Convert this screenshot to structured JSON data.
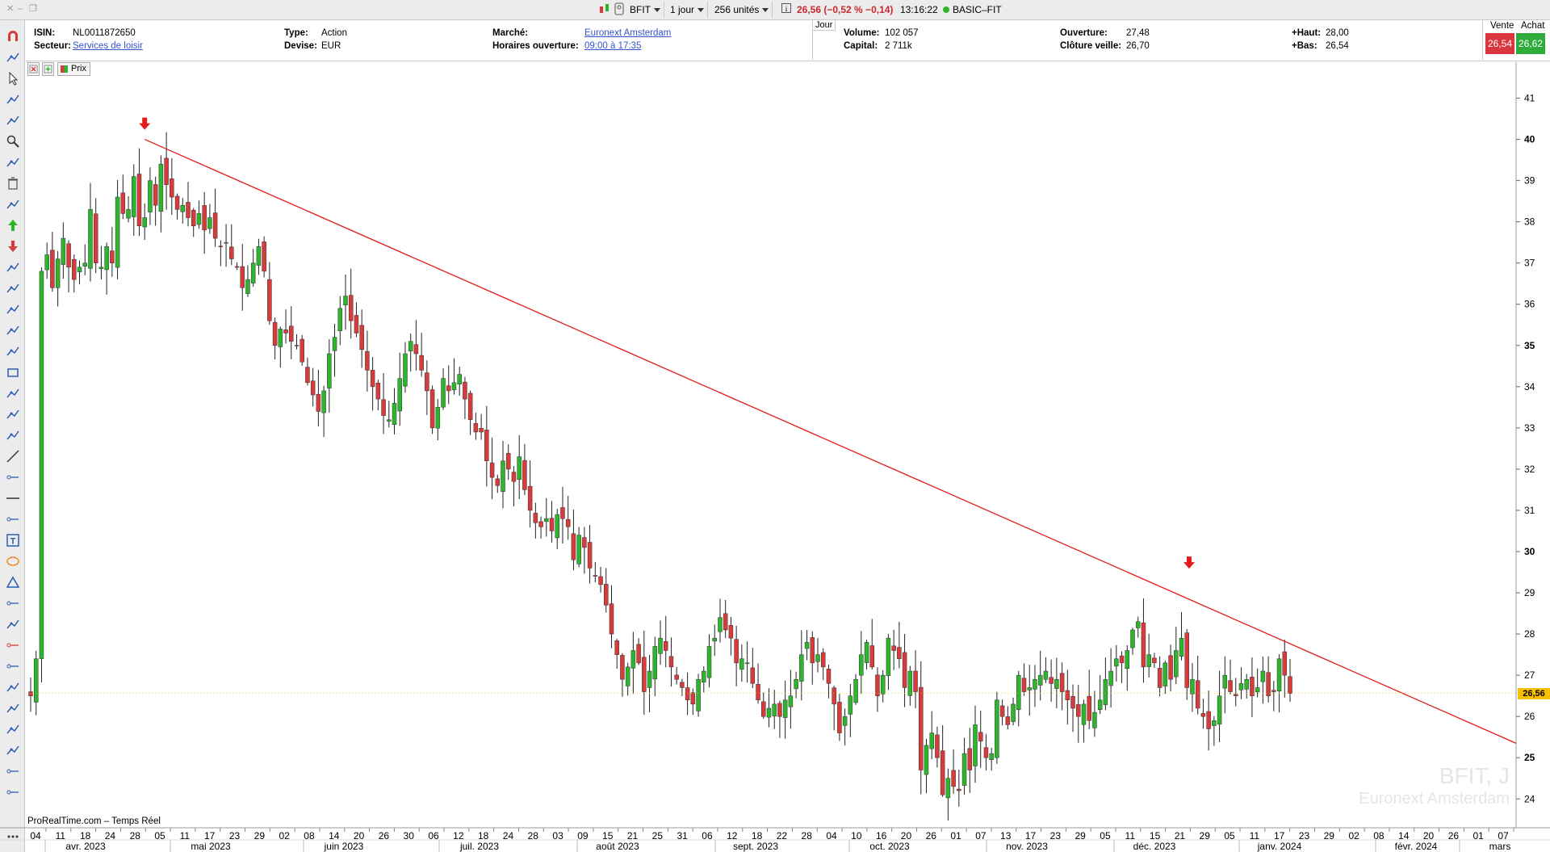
{
  "toolbar": {
    "symbol": "BFIT",
    "period": "1 jour",
    "units": "256 unités",
    "price_change": "26,56 (−0,52 % −0,14)",
    "time": "13:16:22",
    "name": "BASIC–FIT"
  },
  "info": {
    "isin_label": "ISIN:",
    "isin": "NL0011872650",
    "secteur_label": "Secteur:",
    "secteur": "Services de loisir",
    "type_label": "Type:",
    "type": "Action",
    "devise_label": "Devise:",
    "devise": "EUR",
    "marche_label": "Marché:",
    "marche": "Euronext Amsterdam",
    "horaires_label": "Horaires ouverture:",
    "horaires": "09:00 à 17:35",
    "jour_tab": "Jour",
    "volume_label": "Volume:",
    "volume": "102 057",
    "capital_label": "Capital:",
    "capital": "2 711k",
    "ouverture_label": "Ouverture:",
    "ouverture": "27,48",
    "cloture_label": "Clôture veille:",
    "cloture": "26,70",
    "haut_label": "+Haut:",
    "haut": "28,00",
    "bas_label": "+Bas:",
    "bas": "26,54",
    "vente_label": "Vente",
    "vente": "26,54",
    "achat_label": "Achat",
    "achat": "26,62"
  },
  "legend": {
    "prix": "Prix"
  },
  "watermark": {
    "line1": "BFIT, J",
    "line2": "Euronext Amsterdam"
  },
  "footer": "ProRealTime.com – Temps Réel",
  "last_price_tag": "26,56",
  "colors": {
    "up": "#2db52d",
    "down": "#d93a3a",
    "trendline": "#e41b1b",
    "accent_sell": "#d9363e",
    "accent_buy": "#2eab3a",
    "price_tag": "#f6c000"
  },
  "chart_data": {
    "type": "candlestick",
    "ylim": [
      23.3,
      41.5
    ],
    "y_ticks": [
      "24",
      "25",
      "26",
      "27",
      "28",
      "29",
      "30",
      "31",
      "32",
      "33",
      "34",
      "35",
      "36",
      "37",
      "38",
      "39",
      "40",
      "41"
    ],
    "x_day_ticks": [
      "04",
      "11",
      "18",
      "24",
      "28",
      "05",
      "11",
      "17",
      "23",
      "29",
      "02",
      "08",
      "14",
      "20",
      "26",
      "30",
      "06",
      "12",
      "18",
      "24",
      "28",
      "03",
      "09",
      "15",
      "21",
      "25",
      "31",
      "06",
      "12",
      "18",
      "22",
      "28",
      "04",
      "10",
      "16",
      "20",
      "26",
      "01",
      "07",
      "13",
      "17",
      "23",
      "29",
      "05",
      "11",
      "15",
      "21",
      "29",
      "05",
      "11",
      "17",
      "23",
      "29",
      "02",
      "08",
      "14",
      "20",
      "26",
      "01",
      "07"
    ],
    "x_month_ticks": [
      "avr. 2023",
      "mai 2023",
      "juin 2023",
      "juil. 2023",
      "août 2023",
      "sept. 2023",
      "oct. 2023",
      "nov. 2023",
      "déc. 2023",
      "janv. 2024",
      "févr. 2024",
      "mars"
    ],
    "last_close": 26.56,
    "trendline": {
      "from": {
        "date": "2023-05-02",
        "price": 40.0
      },
      "to": {
        "date": "2024-03-08",
        "price": 25.35
      }
    },
    "markers": [
      {
        "date": "2023-05-02",
        "type": "down-arrow"
      },
      {
        "date": "2023-12-22",
        "type": "down-arrow"
      }
    ],
    "closes": [
      26.5,
      27.4,
      36.8,
      37.2,
      36.4,
      37.1,
      37.6,
      36.9,
      36.6,
      36.9,
      37.0,
      38.3,
      37.0,
      36.9,
      37.4,
      37.0,
      38.6,
      38.2,
      38.3,
      39.1,
      37.9,
      38.1,
      39.0,
      38.4,
      39.4,
      38.9,
      38.6,
      38.3,
      38.4,
      38.1,
      37.9,
      38.2,
      37.8,
      38.1,
      37.6,
      37.4,
      37.5,
      37.1,
      36.9,
      36.4,
      36.6,
      37.0,
      37.4,
      36.8,
      35.6,
      35.0,
      35.4,
      35.3,
      35.1,
      35.0,
      34.6,
      34.1,
      33.8,
      33.4,
      33.9,
      34.8,
      35.2,
      35.9,
      36.2,
      35.6,
      35.3,
      34.9,
      34.4,
      34.0,
      33.7,
      33.3,
      33.2,
      33.6,
      34.2,
      34.8,
      35.1,
      34.8,
      34.4,
      33.9,
      33.0,
      33.5,
      34.2,
      33.9,
      34.1,
      34.3,
      33.7,
      33.2,
      32.9,
      32.9,
      32.2,
      31.8,
      31.6,
      32.2,
      32.0,
      31.7,
      32.3,
      31.5,
      31.0,
      30.7,
      30.6,
      30.8,
      30.5,
      30.9,
      30.8,
      30.6,
      29.8,
      30.4,
      30.1,
      29.6,
      29.4,
      29.2,
      28.7,
      28.0,
      27.5,
      26.9,
      27.2,
      27.6,
      27.3,
      26.6,
      27.1,
      27.7,
      27.9,
      27.6,
      27.2,
      26.9,
      26.7,
      26.4,
      26.3,
      26.9,
      27.1,
      27.7,
      27.9,
      28.4,
      28.1,
      27.9,
      27.3,
      27.4,
      27.3,
      26.8,
      26.4,
      26.0,
      26.2,
      26.3,
      26.0,
      26.4,
      26.5,
      26.9,
      27.5,
      27.8,
      27.3,
      27.5,
      27.2,
      26.8,
      26.3,
      25.6,
      26.0,
      26.5,
      26.9,
      27.5,
      27.8,
      27.2,
      26.5,
      27.0,
      27.9,
      27.6,
      27.4,
      26.7,
      27.1,
      26.6,
      24.7,
      25.3,
      25.6,
      25.0,
      24.1,
      24.5,
      24.3,
      24.2,
      25.1,
      24.7,
      25.8,
      25.4,
      25.0,
      25.1,
      26.4,
      26.0,
      25.8,
      26.3,
      27.0,
      26.6,
      26.7,
      26.9,
      27.0,
      27.1,
      26.8,
      26.9,
      26.6,
      26.4,
      26.2,
      26.0,
      26.3,
      25.9,
      26.1,
      26.4,
      26.9,
      27.1,
      27.4,
      27.3,
      27.6,
      28.1,
      28.3,
      27.2,
      27.5,
      27.3,
      26.7,
      27.3,
      26.9,
      27.6,
      27.9,
      26.7,
      26.9,
      26.2,
      26.0,
      25.7,
      25.9,
      26.5,
      27.0,
      26.6,
      26.5,
      26.8,
      26.9,
      26.5,
      26.7,
      27.1,
      26.5,
      26.6,
      27.4,
      27.0,
      26.56
    ]
  }
}
